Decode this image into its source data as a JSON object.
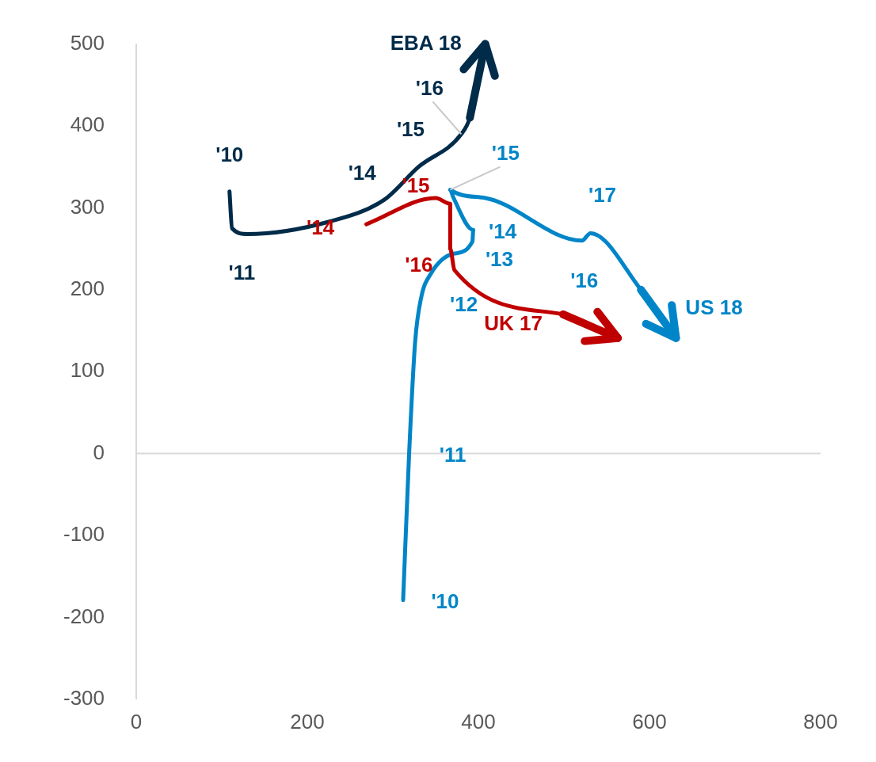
{
  "chart_data": {
    "type": "line",
    "xlim": [
      0,
      800
    ],
    "xticks": [
      0,
      200,
      400,
      600,
      800
    ],
    "ylim": [
      -300,
      500
    ],
    "yticks": [
      -300,
      -200,
      -100,
      0,
      100,
      200,
      300,
      400,
      500
    ],
    "grid": false,
    "legend": false,
    "marker": "none",
    "ref_lines": [
      {
        "axis": "y",
        "value": 0,
        "color": "#d9d9d9"
      }
    ],
    "series": [
      {
        "color": "#002b49",
        "x": [
          109,
          112,
          130,
          225,
          290,
          330,
          380,
          390,
          408
        ],
        "values": [
          320,
          275,
          268,
          283,
          310,
          350,
          390,
          410,
          500
        ]
      },
      {
        "color": "#c00000",
        "x": [
          269,
          350,
          367,
          367,
          372,
          499,
          563
        ],
        "values": [
          280,
          312,
          305,
          250,
          224,
          170,
          141
        ]
      },
      {
        "color": "#0085c8",
        "x": [
          312,
          319,
          326,
          333,
          344,
          371,
          393,
          394,
          371,
          367,
          408,
          521,
          531,
          590,
          631
        ],
        "values": [
          -179,
          0,
          136,
          190,
          219,
          244,
          259,
          273,
          312,
          322,
          312,
          260,
          269,
          200,
          141
        ]
      }
    ],
    "annotations": [
      {
        "text": "'10",
        "x": 109,
        "y": 320
      },
      {
        "text": "'11",
        "x": 130,
        "y": 268
      },
      {
        "text": "'14",
        "x": 290,
        "y": 310
      },
      {
        "text": "'15",
        "x": 330,
        "y": 350
      },
      {
        "text": "'16",
        "x": 380,
        "y": 390
      },
      {
        "text": "EBA 18",
        "x": 408,
        "y": 500
      },
      {
        "text": "'14",
        "x": 269,
        "y": 280
      },
      {
        "text": "'15",
        "x": 350,
        "y": 312
      },
      {
        "text": "'16",
        "x": 372,
        "y": 224
      },
      {
        "text": "UK 17",
        "x": 563,
        "y": 141
      },
      {
        "text": "'10",
        "x": 312,
        "y": -179
      },
      {
        "text": "'11",
        "x": 319,
        "y": 0
      },
      {
        "text": "'12",
        "x": 333,
        "y": 190
      },
      {
        "text": "'13",
        "x": 393,
        "y": 259
      },
      {
        "text": "'14",
        "x": 394,
        "y": 273
      },
      {
        "text": "'15",
        "x": 367,
        "y": 322
      },
      {
        "text": "'16",
        "x": 521,
        "y": 260
      },
      {
        "text": "'17",
        "x": 531,
        "y": 269
      },
      {
        "text": "US 18",
        "x": 631,
        "y": 141
      }
    ]
  }
}
